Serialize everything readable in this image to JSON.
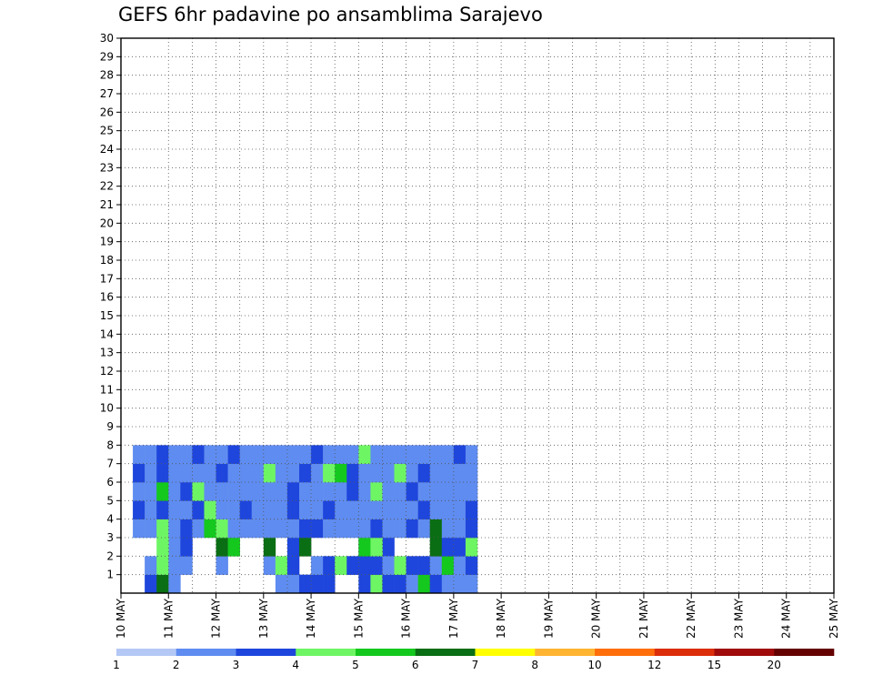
{
  "chart_data": {
    "type": "heatmap",
    "title": "GEFS 6hr padavine po ansamblima Sarajevo",
    "xlabel": "",
    "ylabel": "",
    "x_tick_labels": [
      "10 MAY",
      "11 MAY",
      "12 MAY",
      "13 MAY",
      "14 MAY",
      "15 MAY",
      "16 MAY",
      "17 MAY",
      "18 MAY",
      "19 MAY",
      "20 MAY",
      "21 MAY",
      "22 MAY",
      "23 MAY",
      "24 MAY",
      "25 MAY"
    ],
    "y_tick_labels": [
      "1",
      "2",
      "3",
      "4",
      "5",
      "6",
      "7",
      "8",
      "9",
      "10",
      "11",
      "12",
      "13",
      "14",
      "15",
      "16",
      "17",
      "18",
      "19",
      "20",
      "21",
      "22",
      "23",
      "24",
      "25",
      "26",
      "27",
      "28",
      "29",
      "30"
    ],
    "ylim": [
      0,
      30
    ],
    "x_steps_per_day": 4,
    "n_time_steps": 60,
    "grid": true,
    "colorbar": {
      "labels": [
        "1",
        "2",
        "3",
        "4",
        "5",
        "6",
        "7",
        "8",
        "10",
        "12",
        "15",
        "20"
      ],
      "colors": [
        "#b4c8f5",
        "#5f8cf0",
        "#1e46dc",
        "#6ef564",
        "#14c81e",
        "#0a6e14",
        "#ffff00",
        "#ffb432",
        "#ff6e0a",
        "#dc2d0a",
        "#a00a0a",
        "#640000"
      ]
    },
    "cells": [
      [
        2,
        0,
        2
      ],
      [
        3,
        0,
        5
      ],
      [
        3,
        1,
        2
      ],
      [
        4,
        0,
        1
      ],
      [
        4,
        2,
        1
      ],
      [
        5,
        2,
        1
      ],
      [
        13,
        0,
        1
      ],
      [
        14,
        0,
        1
      ],
      [
        15,
        0,
        2
      ],
      [
        16,
        0,
        2
      ],
      [
        17,
        0,
        2
      ],
      [
        20,
        0,
        2
      ],
      [
        20,
        2,
        2
      ],
      [
        21,
        0,
        3
      ],
      [
        22,
        0,
        2
      ],
      [
        22,
        1,
        3
      ],
      [
        22,
        2,
        2
      ],
      [
        23,
        0,
        2
      ],
      [
        24,
        0,
        1
      ],
      [
        25,
        0,
        4
      ],
      [
        26,
        0,
        2
      ],
      [
        27,
        0,
        1
      ],
      [
        28,
        0,
        1
      ],
      [
        29,
        0,
        1
      ],
      [
        2,
        1,
        1
      ],
      [
        3,
        1,
        3
      ],
      [
        4,
        1,
        1
      ],
      [
        5,
        1,
        1
      ],
      [
        5,
        2,
        2
      ],
      [
        8,
        1,
        1
      ],
      [
        12,
        1,
        1
      ],
      [
        13,
        1,
        3
      ],
      [
        14,
        1,
        2
      ],
      [
        16,
        1,
        1
      ],
      [
        17,
        1,
        2
      ],
      [
        18,
        1,
        3
      ],
      [
        19,
        1,
        2
      ],
      [
        20,
        1,
        2
      ],
      [
        21,
        1,
        2
      ],
      [
        22,
        1,
        1
      ],
      [
        23,
        1,
        3
      ],
      [
        24,
        1,
        2
      ],
      [
        25,
        1,
        2
      ],
      [
        26,
        1,
        1
      ],
      [
        27,
        1,
        4
      ],
      [
        28,
        1,
        1
      ],
      [
        29,
        1,
        2
      ],
      [
        3,
        2,
        3
      ],
      [
        8,
        2,
        5
      ],
      [
        9,
        2,
        4
      ],
      [
        12,
        2,
        5
      ],
      [
        14,
        2,
        2
      ],
      [
        15,
        2,
        5
      ],
      [
        20,
        2,
        4
      ],
      [
        21,
        2,
        3
      ],
      [
        26,
        2,
        5
      ],
      [
        27,
        2,
        2
      ],
      [
        28,
        2,
        2
      ],
      [
        29,
        2,
        3
      ],
      [
        1,
        3,
        1
      ],
      [
        2,
        3,
        1
      ],
      [
        3,
        3,
        3
      ],
      [
        4,
        3,
        1
      ],
      [
        5,
        3,
        2
      ],
      [
        6,
        3,
        1
      ],
      [
        7,
        3,
        4
      ],
      [
        8,
        3,
        3
      ],
      [
        9,
        3,
        1
      ],
      [
        10,
        3,
        1
      ],
      [
        11,
        3,
        1
      ],
      [
        12,
        3,
        1
      ],
      [
        13,
        3,
        1
      ],
      [
        14,
        3,
        1
      ],
      [
        15,
        3,
        2
      ],
      [
        16,
        3,
        2
      ],
      [
        17,
        3,
        1
      ],
      [
        18,
        3,
        1
      ],
      [
        19,
        3,
        1
      ],
      [
        20,
        3,
        1
      ],
      [
        21,
        3,
        2
      ],
      [
        22,
        3,
        1
      ],
      [
        23,
        3,
        1
      ],
      [
        24,
        3,
        2
      ],
      [
        25,
        3,
        1
      ],
      [
        26,
        3,
        5
      ],
      [
        27,
        3,
        1
      ],
      [
        28,
        3,
        1
      ],
      [
        29,
        3,
        2
      ],
      [
        1,
        4,
        2
      ],
      [
        2,
        4,
        1
      ],
      [
        3,
        4,
        2
      ],
      [
        4,
        4,
        1
      ],
      [
        5,
        4,
        1
      ],
      [
        6,
        4,
        2
      ],
      [
        7,
        4,
        3
      ],
      [
        8,
        4,
        1
      ],
      [
        9,
        4,
        1
      ],
      [
        10,
        4,
        2
      ],
      [
        11,
        4,
        1
      ],
      [
        12,
        4,
        1
      ],
      [
        13,
        4,
        1
      ],
      [
        14,
        4,
        2
      ],
      [
        15,
        4,
        1
      ],
      [
        16,
        4,
        1
      ],
      [
        17,
        4,
        2
      ],
      [
        18,
        4,
        1
      ],
      [
        19,
        4,
        1
      ],
      [
        20,
        4,
        1
      ],
      [
        21,
        4,
        1
      ],
      [
        22,
        4,
        1
      ],
      [
        23,
        4,
        1
      ],
      [
        24,
        4,
        1
      ],
      [
        25,
        4,
        2
      ],
      [
        26,
        4,
        1
      ],
      [
        27,
        4,
        1
      ],
      [
        28,
        4,
        1
      ],
      [
        29,
        4,
        2
      ],
      [
        1,
        5,
        1
      ],
      [
        2,
        5,
        1
      ],
      [
        3,
        5,
        4
      ],
      [
        4,
        5,
        1
      ],
      [
        5,
        5,
        2
      ],
      [
        6,
        5,
        3
      ],
      [
        7,
        5,
        1
      ],
      [
        8,
        5,
        1
      ],
      [
        9,
        5,
        1
      ],
      [
        10,
        5,
        1
      ],
      [
        11,
        5,
        1
      ],
      [
        12,
        5,
        1
      ],
      [
        13,
        5,
        1
      ],
      [
        14,
        5,
        2
      ],
      [
        15,
        5,
        1
      ],
      [
        16,
        5,
        1
      ],
      [
        17,
        5,
        1
      ],
      [
        18,
        5,
        1
      ],
      [
        19,
        5,
        2
      ],
      [
        20,
        5,
        1
      ],
      [
        21,
        5,
        3
      ],
      [
        22,
        5,
        1
      ],
      [
        23,
        5,
        1
      ],
      [
        24,
        5,
        2
      ],
      [
        25,
        5,
        1
      ],
      [
        26,
        5,
        1
      ],
      [
        27,
        5,
        1
      ],
      [
        28,
        5,
        1
      ],
      [
        29,
        5,
        1
      ],
      [
        1,
        6,
        2
      ],
      [
        2,
        6,
        1
      ],
      [
        3,
        6,
        2
      ],
      [
        4,
        6,
        1
      ],
      [
        5,
        6,
        1
      ],
      [
        6,
        6,
        1
      ],
      [
        7,
        6,
        1
      ],
      [
        8,
        6,
        2
      ],
      [
        9,
        6,
        1
      ],
      [
        10,
        6,
        1
      ],
      [
        11,
        6,
        1
      ],
      [
        12,
        6,
        3
      ],
      [
        13,
        6,
        1
      ],
      [
        14,
        6,
        1
      ],
      [
        15,
        6,
        2
      ],
      [
        16,
        6,
        1
      ],
      [
        17,
        6,
        3
      ],
      [
        18,
        6,
        4
      ],
      [
        19,
        6,
        2
      ],
      [
        20,
        6,
        1
      ],
      [
        21,
        6,
        1
      ],
      [
        22,
        6,
        1
      ],
      [
        23,
        6,
        3
      ],
      [
        24,
        6,
        1
      ],
      [
        25,
        6,
        2
      ],
      [
        26,
        6,
        1
      ],
      [
        27,
        6,
        1
      ],
      [
        28,
        6,
        1
      ],
      [
        29,
        6,
        1
      ],
      [
        1,
        7,
        1
      ],
      [
        2,
        7,
        1
      ],
      [
        3,
        7,
        2
      ],
      [
        4,
        7,
        1
      ],
      [
        5,
        7,
        1
      ],
      [
        6,
        7,
        2
      ],
      [
        7,
        7,
        1
      ],
      [
        8,
        7,
        1
      ],
      [
        9,
        7,
        2
      ],
      [
        10,
        7,
        1
      ],
      [
        11,
        7,
        1
      ],
      [
        12,
        7,
        1
      ],
      [
        13,
        7,
        1
      ],
      [
        14,
        7,
        1
      ],
      [
        15,
        7,
        1
      ],
      [
        16,
        7,
        2
      ],
      [
        17,
        7,
        1
      ],
      [
        18,
        7,
        1
      ],
      [
        19,
        7,
        1
      ],
      [
        20,
        7,
        3
      ],
      [
        21,
        7,
        1
      ],
      [
        22,
        7,
        1
      ],
      [
        23,
        7,
        1
      ],
      [
        24,
        7,
        1
      ],
      [
        25,
        7,
        1
      ],
      [
        26,
        7,
        1
      ],
      [
        27,
        7,
        1
      ],
      [
        28,
        7,
        2
      ],
      [
        29,
        7,
        1
      ]
    ]
  }
}
